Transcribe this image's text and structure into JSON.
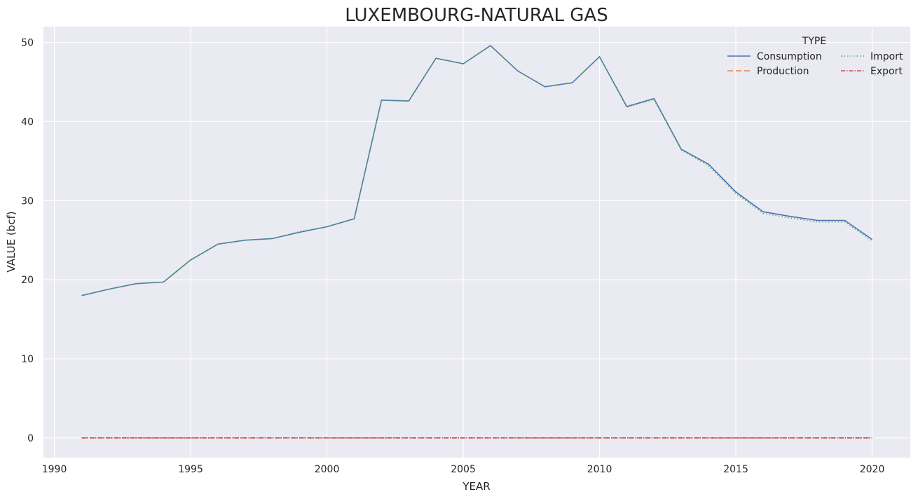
{
  "chart_data": {
    "type": "line",
    "title": "LUXEMBOURG-NATURAL GAS",
    "xlabel": "YEAR",
    "ylabel": "VALUE (bcf)",
    "xlim": [
      1989.6,
      2021.4
    ],
    "ylim": [
      -2.5,
      52
    ],
    "xticks": [
      1990,
      1995,
      2000,
      2005,
      2010,
      2015,
      2020
    ],
    "yticks": [
      0,
      10,
      20,
      30,
      40,
      50
    ],
    "grid": true,
    "legend": {
      "title": "TYPE",
      "placement": "top-right",
      "columns": 2
    },
    "background": "#EAEAF2",
    "x": [
      1991,
      1992,
      1993,
      1994,
      1995,
      1996,
      1997,
      1998,
      1999,
      2000,
      2001,
      2002,
      2003,
      2004,
      2005,
      2006,
      2007,
      2008,
      2009,
      2010,
      2011,
      2012,
      2013,
      2014,
      2015,
      2016,
      2017,
      2018,
      2019,
      2020
    ],
    "series": [
      {
        "name": "Consumption",
        "color": "#4C72B0",
        "dash": "",
        "values": [
          18.0,
          18.8,
          19.5,
          19.7,
          22.5,
          24.5,
          25.0,
          25.2,
          26.0,
          26.7,
          27.7,
          42.7,
          42.6,
          48.0,
          47.3,
          49.6,
          46.4,
          44.4,
          44.9,
          48.2,
          41.9,
          42.9,
          36.5,
          34.6,
          31.1,
          28.6,
          28.0,
          27.5,
          27.5,
          25.1
        ]
      },
      {
        "name": "Production",
        "color": "#DD8452",
        "dash": "8,4",
        "values": [
          0,
          0,
          0,
          0,
          0,
          0,
          0,
          0,
          0,
          0,
          0,
          0,
          0,
          0,
          0,
          0,
          0,
          0,
          0,
          0,
          0,
          0,
          0,
          0,
          0,
          0,
          0,
          0,
          0,
          0
        ]
      },
      {
        "name": "Import",
        "color": "#55A868",
        "dash": "1.5,3",
        "values": [
          18.0,
          18.8,
          19.5,
          19.7,
          22.5,
          24.5,
          25.0,
          25.2,
          26.1,
          26.7,
          27.7,
          42.7,
          42.6,
          48.0,
          47.3,
          49.6,
          46.4,
          44.4,
          44.9,
          48.2,
          41.8,
          42.8,
          36.4,
          34.4,
          30.9,
          28.4,
          27.8,
          27.3,
          27.3,
          24.9
        ]
      },
      {
        "name": "Export",
        "color": "#C44E52",
        "dash": "6,2,1.5,2",
        "values": [
          0,
          0,
          0,
          0,
          0,
          0,
          0,
          0,
          0,
          0,
          0,
          0,
          0,
          0,
          0,
          0,
          0,
          0,
          0,
          0,
          0,
          0,
          0,
          0,
          0,
          0,
          0,
          0,
          0,
          0
        ]
      }
    ]
  }
}
